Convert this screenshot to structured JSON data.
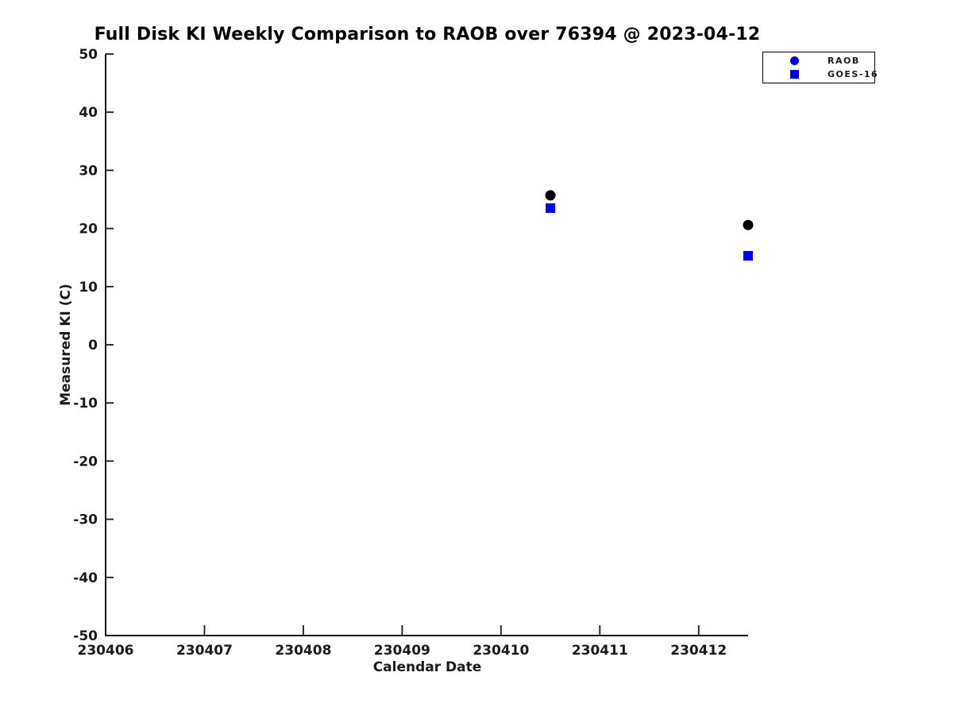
{
  "chart_data": {
    "type": "scatter",
    "title": "Full Disk KI Weekly Comparison to RAOB over 76394 @ 2023-04-12",
    "xlabel": "Calendar Date",
    "ylabel": "Measured KI (C)",
    "xlim": [
      230406,
      230412.5
    ],
    "ylim": [
      -50,
      50
    ],
    "x_ticks": [
      230406,
      230407,
      230408,
      230409,
      230410,
      230411,
      230412
    ],
    "y_ticks": [
      50,
      40,
      30,
      20,
      10,
      0,
      -10,
      -20,
      -30,
      -40,
      -50
    ],
    "grid": false,
    "background_color": "#ffffff",
    "axis_color": "#1a1a1a",
    "legend": {
      "position": "top-right",
      "border_color": "#000000"
    },
    "series": [
      {
        "name": "RAOB",
        "marker": "circle",
        "plot_color": "#000000",
        "legend_color": "#0000FF",
        "x": [
          230410.5,
          230412.5
        ],
        "y": [
          25.7,
          20.6
        ]
      },
      {
        "name": "GOES-16",
        "marker": "square",
        "plot_color": "#0000FF",
        "legend_color": "#0000FF",
        "x": [
          230410.5,
          230412.5
        ],
        "y": [
          23.5,
          15.3
        ]
      }
    ]
  }
}
